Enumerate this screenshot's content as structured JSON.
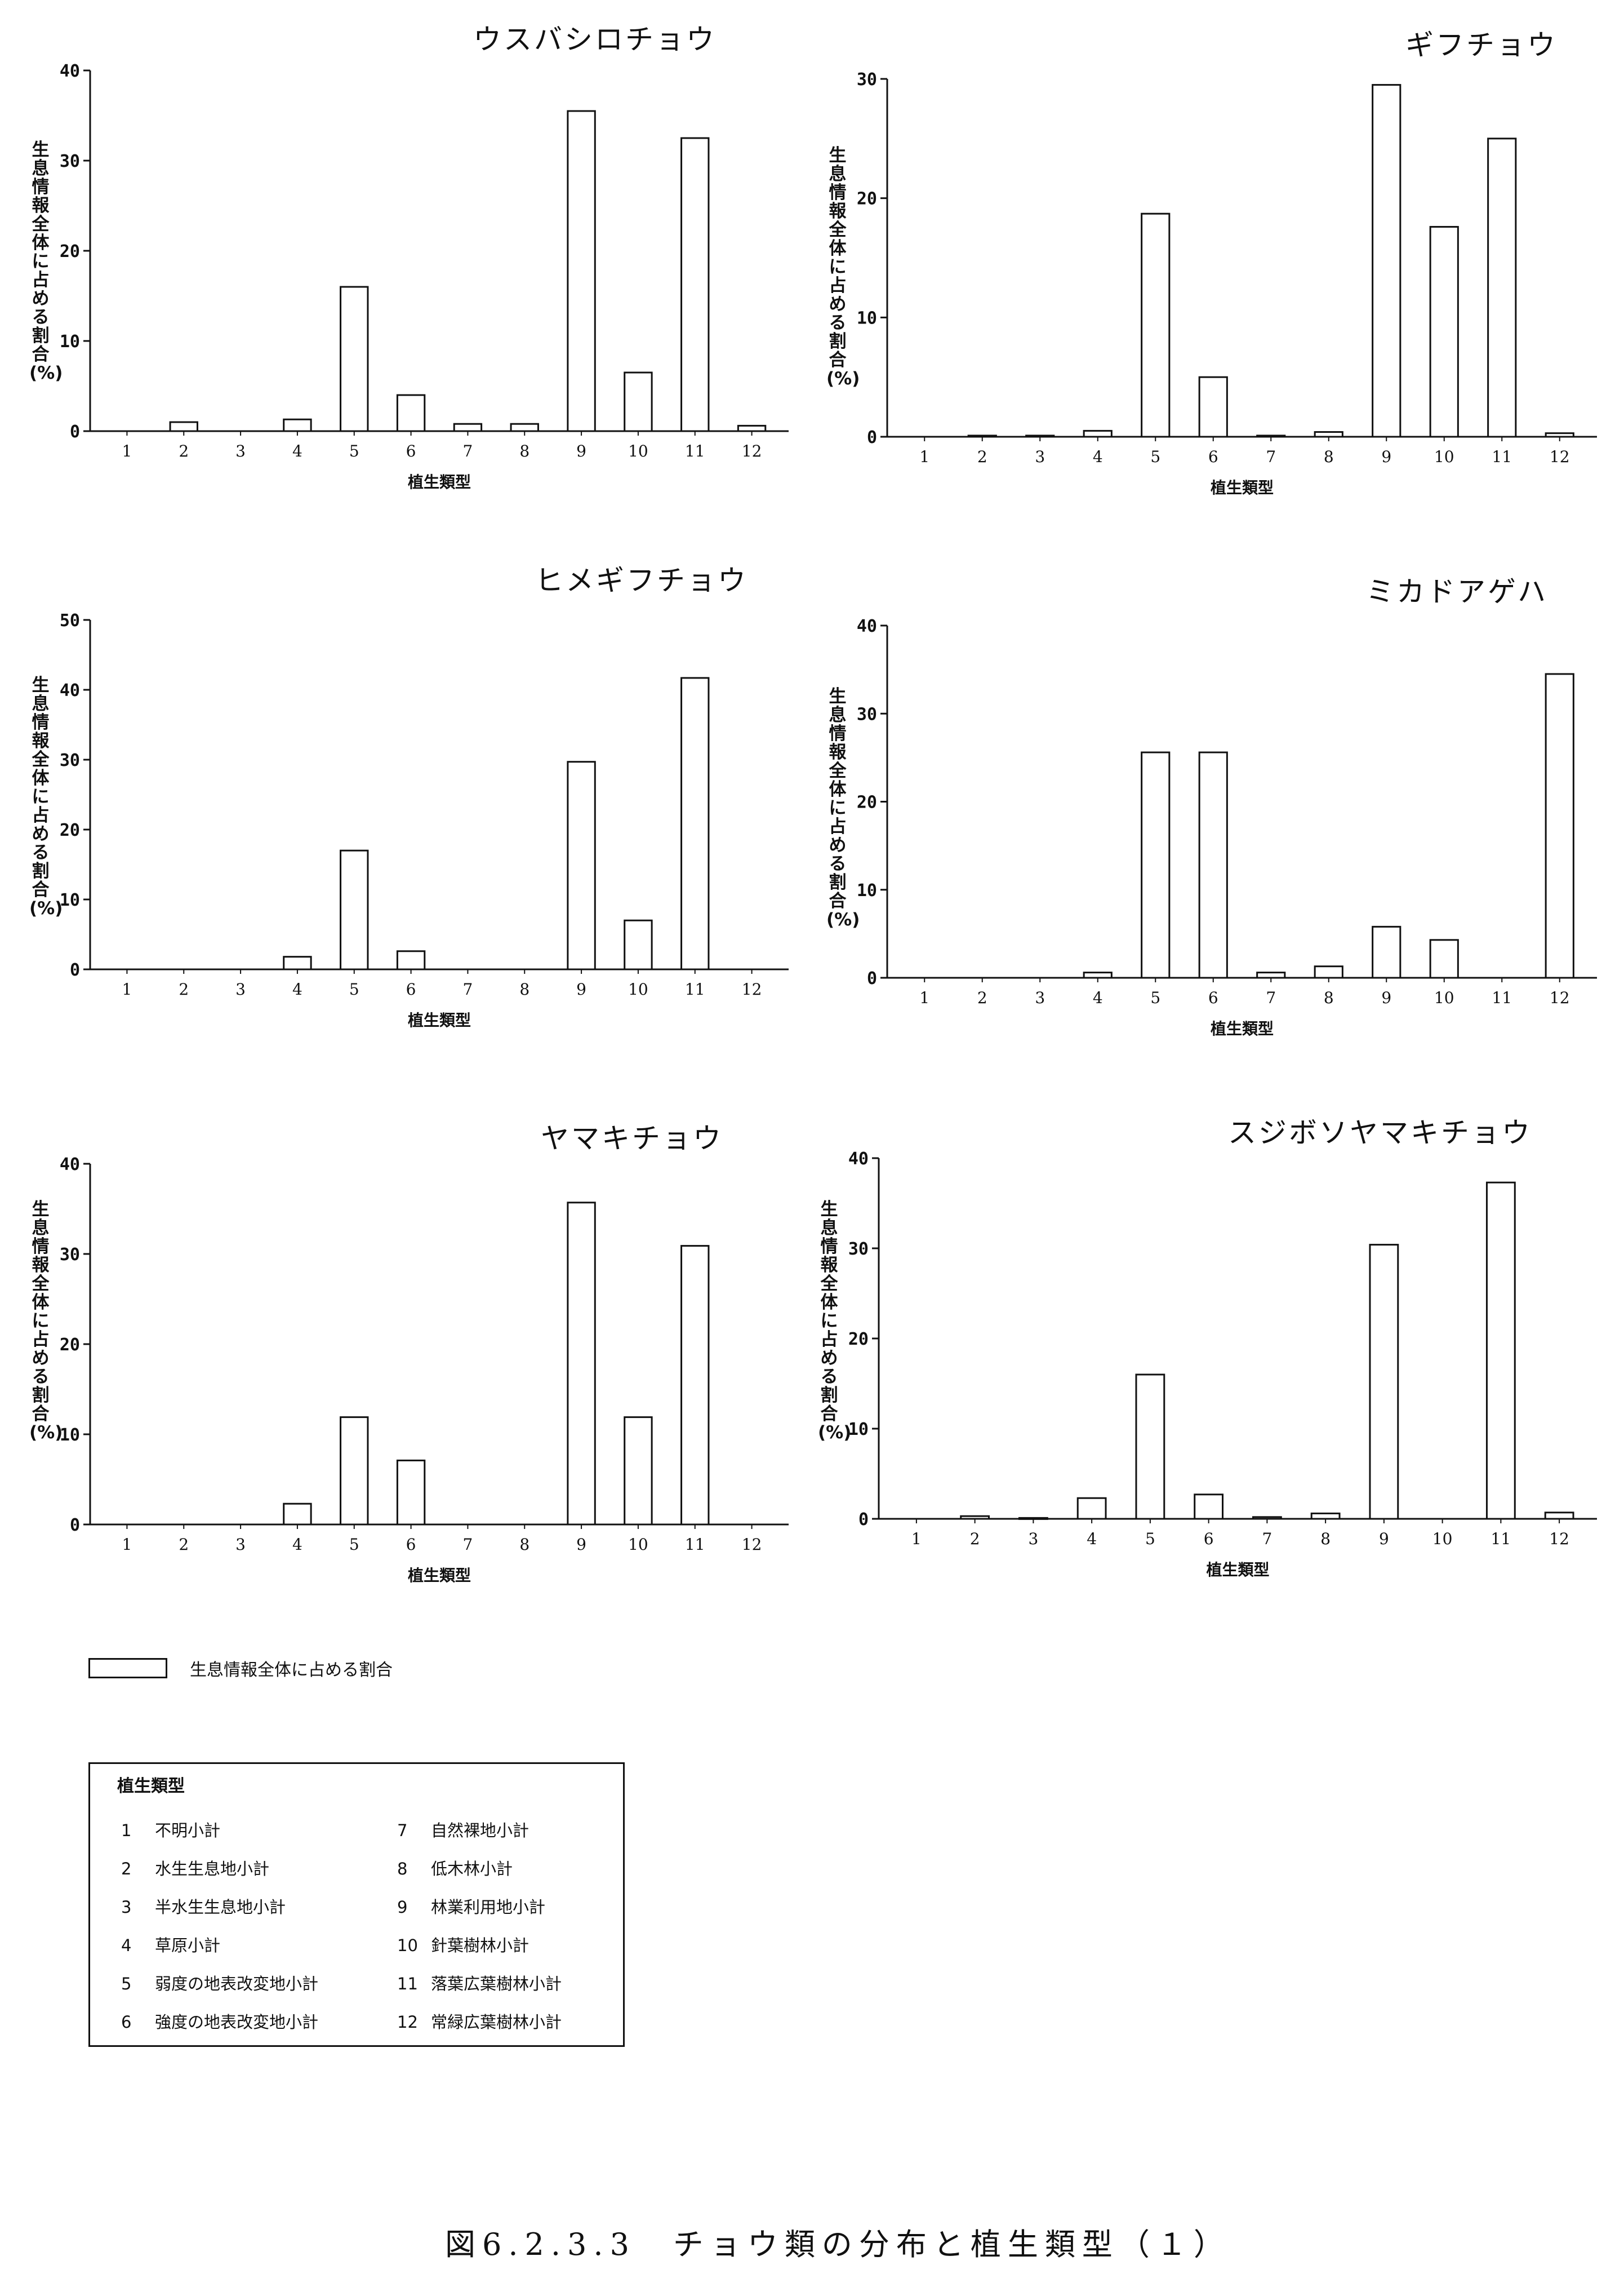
{
  "chart_data": [
    {
      "type": "bar",
      "title": "ウスバシロチョウ",
      "ylabel": "生息情報全体に占める割合(%)",
      "xlabel": "植生類型",
      "categories": [
        "1",
        "2",
        "3",
        "4",
        "5",
        "6",
        "7",
        "8",
        "9",
        "10",
        "11",
        "12"
      ],
      "values": [
        0,
        1,
        0,
        1.3,
        16,
        4,
        0.8,
        0.8,
        35.5,
        6.5,
        32.5,
        0.6
      ],
      "ylim": [
        0,
        40
      ],
      "yticks": [
        "0",
        "10",
        "20",
        "30",
        "40"
      ]
    },
    {
      "type": "bar",
      "title": "ギフチョウ",
      "ylabel": "生息情報全体に占める割合(%)",
      "xlabel": "植生類型",
      "categories": [
        "1",
        "2",
        "3",
        "4",
        "5",
        "6",
        "7",
        "8",
        "9",
        "10",
        "11",
        "12"
      ],
      "values": [
        0,
        0.1,
        0.1,
        0.5,
        18.7,
        5,
        0.1,
        0.4,
        29.5,
        17.6,
        25,
        0.3
      ],
      "ylim": [
        0,
        30
      ],
      "yticks": [
        "0",
        "10",
        "20",
        "30"
      ]
    },
    {
      "type": "bar",
      "title": "ヒメギフチョウ",
      "ylabel": "生息情報全体に占める割合(%)",
      "xlabel": "植生類型",
      "categories": [
        "1",
        "2",
        "3",
        "4",
        "5",
        "6",
        "7",
        "8",
        "9",
        "10",
        "11",
        "12"
      ],
      "values": [
        0,
        0,
        0,
        1.8,
        17,
        2.6,
        0,
        0,
        29.7,
        7,
        41.7,
        0
      ],
      "ylim": [
        0,
        50
      ],
      "yticks": [
        "0",
        "10",
        "20",
        "30",
        "40",
        "50"
      ]
    },
    {
      "type": "bar",
      "title": "ミカドアゲハ",
      "ylabel": "生息情報全体に占める割合(%)",
      "xlabel": "植生類型",
      "categories": [
        "1",
        "2",
        "3",
        "4",
        "5",
        "6",
        "7",
        "8",
        "9",
        "10",
        "11",
        "12"
      ],
      "values": [
        0,
        0,
        0,
        0.6,
        25.6,
        25.6,
        0.6,
        1.3,
        5.8,
        4.3,
        0,
        34.5
      ],
      "ylim": [
        0,
        40
      ],
      "yticks": [
        "0",
        "10",
        "20",
        "30",
        "40"
      ]
    },
    {
      "type": "bar",
      "title": "ヤマキチョウ",
      "ylabel": "生息情報全体に占める割合(%)",
      "xlabel": "植生類型",
      "categories": [
        "1",
        "2",
        "3",
        "4",
        "5",
        "6",
        "7",
        "8",
        "9",
        "10",
        "11",
        "12"
      ],
      "values": [
        0,
        0,
        0,
        2.3,
        11.9,
        7.1,
        0,
        0,
        35.7,
        11.9,
        30.9,
        0
      ],
      "ylim": [
        0,
        40
      ],
      "yticks": [
        "0",
        "10",
        "20",
        "30",
        "40"
      ]
    },
    {
      "type": "bar",
      "title": "スジボソヤマキチョウ",
      "ylabel": "生息情報全体に占める割合(%)",
      "xlabel": "植生類型",
      "categories": [
        "1",
        "2",
        "3",
        "4",
        "5",
        "6",
        "7",
        "8",
        "9",
        "10",
        "11",
        "12"
      ],
      "values": [
        0,
        0.3,
        0.1,
        2.3,
        16,
        2.7,
        0.2,
        0.6,
        30.4,
        0,
        37.3,
        0.7
      ],
      "ylim": [
        0,
        40
      ],
      "yticks": [
        "0",
        "10",
        "20",
        "30",
        "40"
      ]
    }
  ],
  "legend": {
    "series_label": "生息情報全体に占める割合",
    "category_title": "植生類型",
    "items": [
      {
        "num": "1",
        "label": "不明小計"
      },
      {
        "num": "2",
        "label": "水生生息地小計"
      },
      {
        "num": "3",
        "label": "半水生生息地小計"
      },
      {
        "num": "4",
        "label": "草原小計"
      },
      {
        "num": "5",
        "label": "弱度の地表改変地小計"
      },
      {
        "num": "6",
        "label": "強度の地表改変地小計"
      },
      {
        "num": "7",
        "label": "自然裸地小計"
      },
      {
        "num": "8",
        "label": "低木林小計"
      },
      {
        "num": "9",
        "label": "林業利用地小計"
      },
      {
        "num": "10",
        "label": "針葉樹林小計"
      },
      {
        "num": "11",
        "label": "落葉広葉樹林小計"
      },
      {
        "num": "12",
        "label": "常緑広葉樹林小計"
      }
    ]
  },
  "caption": "図6.2.3.3　チョウ類の分布と植生類型（１）"
}
